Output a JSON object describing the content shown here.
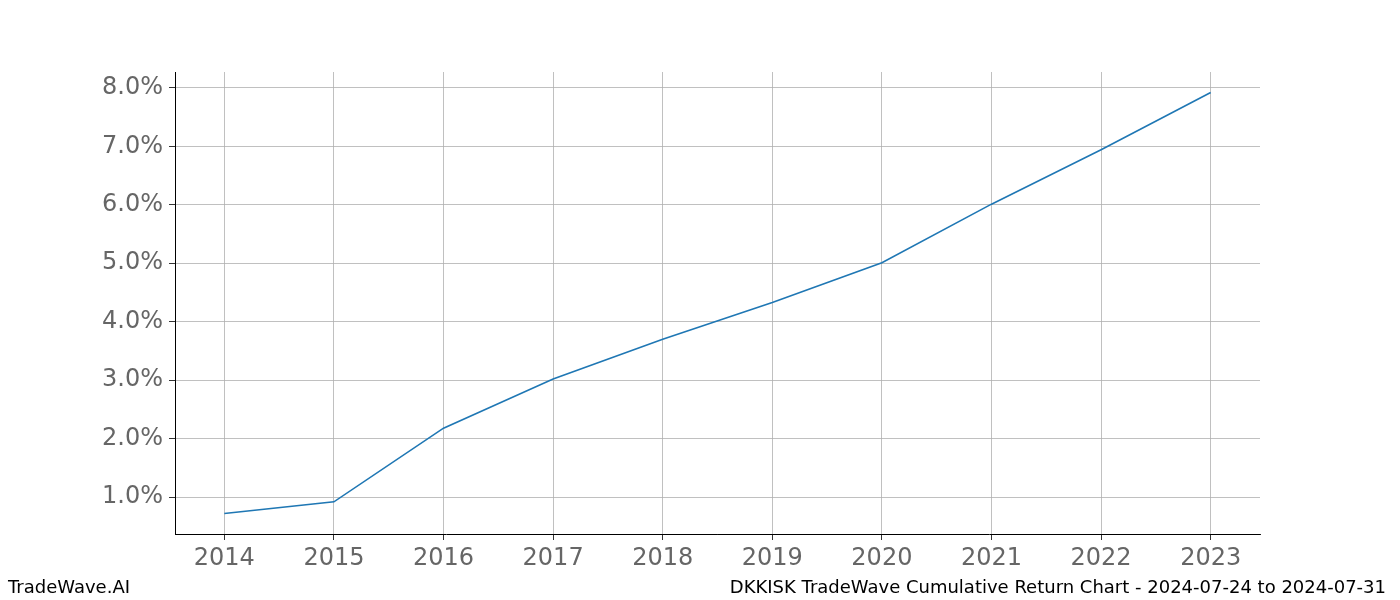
{
  "chart_data": {
    "type": "line",
    "x": [
      2014,
      2015,
      2016,
      2017,
      2018,
      2019,
      2020,
      2021,
      2022,
      2023
    ],
    "values": [
      0.72,
      0.92,
      2.18,
      3.02,
      3.7,
      4.33,
      5.01,
      6.01,
      6.94,
      7.92
    ],
    "color": "#1f77b4",
    "xlim": [
      2013.55,
      2023.45
    ],
    "xticks": [
      2014,
      2015,
      2016,
      2017,
      2018,
      2019,
      2020,
      2021,
      2022,
      2023
    ],
    "ylim": [
      0.37,
      8.27
    ],
    "yticks": [
      {
        "value": 1,
        "label": "1.0%"
      },
      {
        "value": 2,
        "label": "2.0%"
      },
      {
        "value": 3,
        "label": "3.0%"
      },
      {
        "value": 4,
        "label": "4.0%"
      },
      {
        "value": 5,
        "label": "5.0%"
      },
      {
        "value": 6,
        "label": "6.0%"
      },
      {
        "value": 7,
        "label": "7.0%"
      },
      {
        "value": 8,
        "label": "8.0%"
      }
    ],
    "grid": true,
    "annotations": [
      "TradeWave.AI",
      "DKKISK TradeWave Cumulative Return Chart - 2024-07-24 to 2024-07-31"
    ]
  }
}
